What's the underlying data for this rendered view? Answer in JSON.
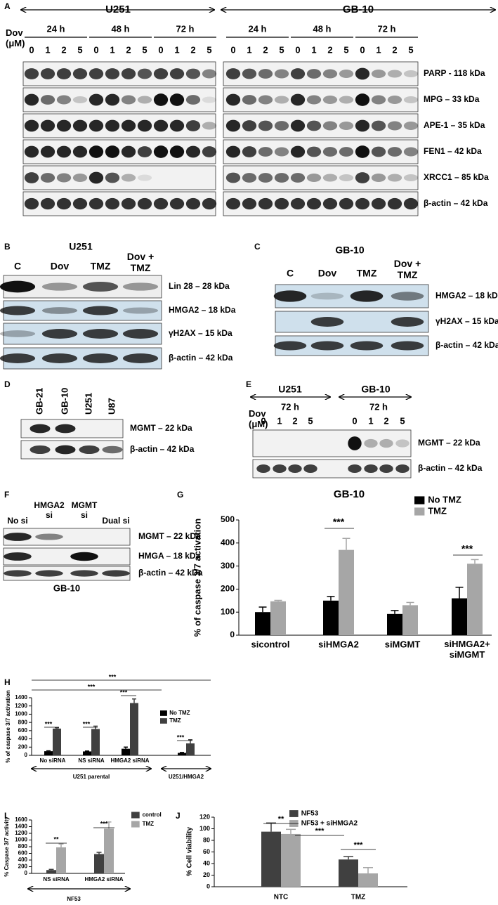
{
  "panels": {
    "A": {
      "letter": "A",
      "lines": [
        "U251",
        "GB-10"
      ],
      "times": [
        "24 h",
        "48 h",
        "72 h"
      ],
      "dose_label": "Dov\n(μM)",
      "doses": [
        "0",
        "1",
        "2",
        "5"
      ],
      "proteins": [
        "PARP - 118 kDa",
        "MPG – 33 kDa",
        "APE-1 – 35 kDa",
        "FEN1 – 42 kDa",
        "XRCC1 – 85 kDa",
        "β-actin – 42 kDa"
      ]
    },
    "B": {
      "letter": "B",
      "line": "U251",
      "lanes": [
        "C",
        "Dov",
        "TMZ",
        "Dov +\nTMZ"
      ],
      "proteins": [
        "Lin 28 – 28 kDa",
        "HMGA2 – 18 kDa",
        "γH2AX – 15 kDa",
        "β-actin – 42 kDa"
      ]
    },
    "C": {
      "letter": "C",
      "line": "GB-10",
      "lanes": [
        "C",
        "Dov",
        "TMZ",
        "Dov +\nTMZ"
      ],
      "proteins": [
        "HMGA2 – 18 kDa",
        "γH2AX – 15 kDa",
        "β-actin – 42 kDa"
      ]
    },
    "D": {
      "letter": "D",
      "lanes": [
        "GB-21",
        "GB-10",
        "U251",
        "U87"
      ],
      "proteins": [
        "MGMT – 22 kDa",
        "β-actin – 42 kDa"
      ]
    },
    "E": {
      "letter": "E",
      "lines": [
        "U251",
        "GB-10"
      ],
      "time": "72 h",
      "dose_label": "Dov\n(μM)",
      "doses": [
        "0",
        "1",
        "2",
        "5"
      ],
      "proteins": [
        "MGMT – 22 kDa",
        "β-actin – 42 kDa"
      ]
    },
    "F": {
      "letter": "F",
      "lanes": [
        "No si",
        "HMGA2\nsi",
        "MGMT\nsi",
        "Dual si"
      ],
      "proteins": [
        "MGMT – 22 kDa",
        "HMGA – 18 kDa",
        "β-actin – 42 kDa"
      ],
      "cell": "GB-10"
    }
  },
  "chart_data": [
    {
      "letter": "G",
      "type": "bar",
      "title": "GB-10",
      "y_label": "% of caspase 3/7 activation",
      "categories": [
        "sicontrol",
        "siHMGA2",
        "siMGMT",
        "siHMGA2+\nsiMGMT"
      ],
      "series": [
        {
          "name": "No TMZ",
          "color": "#000000",
          "values": [
            100,
            150,
            92,
            160
          ],
          "errors": [
            22,
            18,
            15,
            48
          ]
        },
        {
          "name": "TMZ",
          "color": "#a6a6a6",
          "values": [
            147,
            370,
            130,
            310
          ],
          "errors": [
            4,
            50,
            12,
            18
          ]
        }
      ],
      "ylim": [
        0,
        500
      ],
      "yticks": [
        0,
        100,
        200,
        300,
        400,
        500
      ],
      "annotations": [
        "***",
        "***"
      ]
    },
    {
      "letter": "H",
      "type": "bar",
      "y_label": "% of caspase 3/7 activation",
      "categories": [
        "No siRNA",
        "NS siRNA",
        "HMGA2 siRNA",
        null
      ],
      "series": [
        {
          "name": "No TMZ",
          "color": "#000000",
          "values": [
            100,
            95,
            160,
            60
          ],
          "errors": [
            10,
            10,
            40,
            10
          ]
        },
        {
          "name": "TMZ",
          "color": "#404040",
          "values": [
            650,
            640,
            1270,
            290
          ],
          "errors": [
            20,
            70,
            100,
            90
          ]
        }
      ],
      "ylim": [
        0,
        1400
      ],
      "yticks": [
        0,
        200,
        400,
        600,
        800,
        1000,
        1200,
        1400
      ],
      "annotations": [
        "***",
        "***",
        "***",
        "***",
        "***",
        "***"
      ],
      "groups": [
        "U251 parental",
        "U251/HMGA2"
      ]
    },
    {
      "letter": "I",
      "type": "bar",
      "y_label": "% Caspase 3/7 activity",
      "categories": [
        "NS siRNA",
        "HMGA2 siRNA"
      ],
      "series": [
        {
          "name": "control",
          "color": "#404040",
          "values": [
            100,
            580
          ],
          "errors": [
            20,
            50
          ]
        },
        {
          "name": "TMZ",
          "color": "#a6a6a6",
          "values": [
            780,
            1340
          ],
          "errors": [
            100,
            200
          ]
        }
      ],
      "ylim": [
        0,
        1600
      ],
      "yticks": [
        0,
        200,
        400,
        600,
        800,
        1000,
        1200,
        1400,
        1600
      ],
      "annotations": [
        "**",
        "***"
      ],
      "groups": [
        "NF53"
      ]
    },
    {
      "letter": "J",
      "type": "bar",
      "y_label": "% Cell viability",
      "categories": [
        "NTC",
        "TMZ"
      ],
      "series": [
        {
          "name": "NF53",
          "color": "#404040",
          "values": [
            95,
            47
          ],
          "errors": [
            15,
            5
          ]
        },
        {
          "name": "NF53 + siHMGA2",
          "color": "#a6a6a6",
          "values": [
            91,
            23
          ],
          "errors": [
            8,
            10
          ]
        }
      ],
      "ylim": [
        0,
        120
      ],
      "yticks": [
        0,
        20,
        40,
        60,
        80,
        100,
        120
      ],
      "annotations": [
        "**",
        "***",
        "***"
      ]
    }
  ]
}
